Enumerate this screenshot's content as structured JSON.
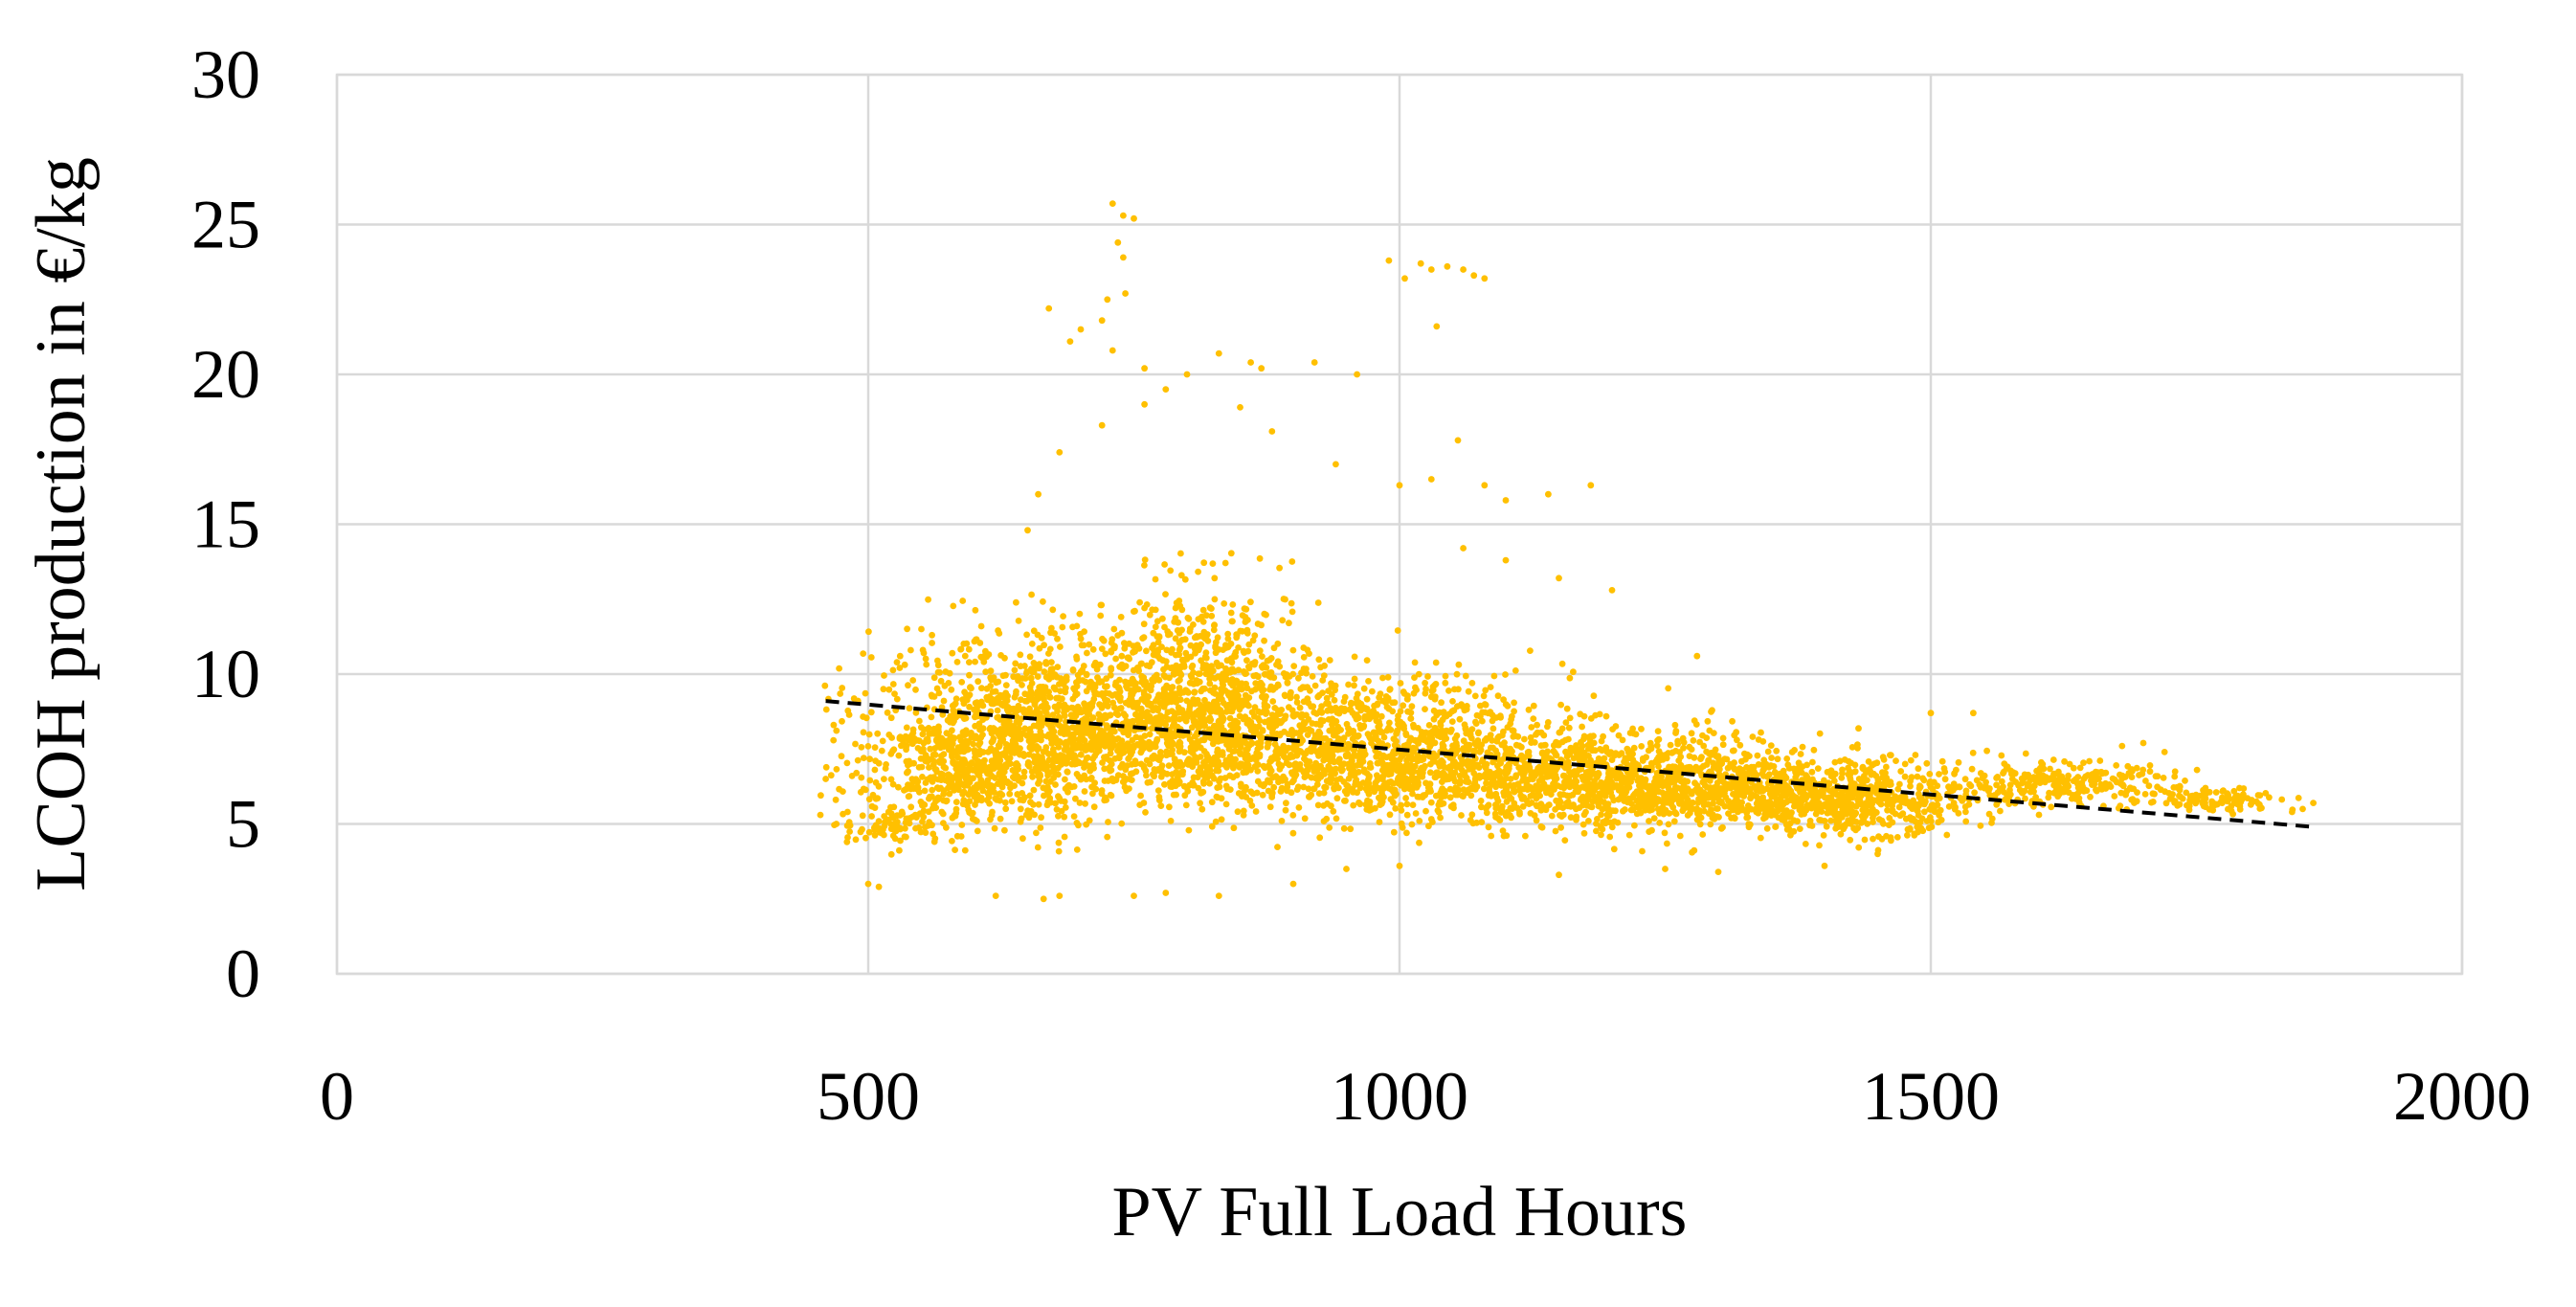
{
  "chart_data": {
    "type": "scatter",
    "title": "",
    "xlabel": "PV Full Load Hours",
    "ylabel": "LCOH production in €/kg",
    "xlim": [
      0,
      2000
    ],
    "ylim": [
      0,
      30
    ],
    "x_ticks": [
      0,
      500,
      1000,
      1500,
      2000
    ],
    "y_ticks": [
      0,
      5,
      10,
      15,
      20,
      25,
      30
    ],
    "grid": true,
    "legend": "none",
    "point_color": "#ffc000",
    "trendline": {
      "type": "linear",
      "style": "dashed",
      "color": "#000000",
      "points": [
        [
          460,
          9.1
        ],
        [
          1860,
          4.9
        ]
      ]
    },
    "series": [
      {
        "name": "LCOH production",
        "clusters": [
          {
            "x_center": 690,
            "y_center": 8.2,
            "x_spread": 150,
            "y_spread": 2.0,
            "count": 1400
          },
          {
            "x_center": 820,
            "y_center": 9.2,
            "x_spread": 90,
            "y_spread": 2.5,
            "count": 700
          },
          {
            "x_center": 600,
            "y_center": 6.6,
            "x_spread": 90,
            "y_spread": 1.5,
            "count": 500
          },
          {
            "x_center": 980,
            "y_center": 7.3,
            "x_spread": 150,
            "y_spread": 1.7,
            "count": 1300
          },
          {
            "x_center": 1220,
            "y_center": 6.3,
            "x_spread": 150,
            "y_spread": 1.2,
            "count": 1200
          },
          {
            "x_center": 1420,
            "y_center": 5.8,
            "x_spread": 100,
            "y_spread": 0.9,
            "count": 650
          },
          {
            "x_center": 1620,
            "y_center": 6.3,
            "x_spread": 90,
            "y_spread": 0.5,
            "count": 260
          },
          {
            "x_center": 1770,
            "y_center": 5.8,
            "x_spread": 60,
            "y_spread": 0.3,
            "count": 110
          },
          {
            "x_center": 520,
            "y_center": 5.0,
            "x_spread": 40,
            "y_spread": 0.5,
            "count": 80
          }
        ],
        "outliers": [
          [
            730,
            25.7
          ],
          [
            740,
            25.3
          ],
          [
            750,
            25.2
          ],
          [
            735,
            24.4
          ],
          [
            740,
            23.9
          ],
          [
            742,
            22.7
          ],
          [
            725,
            22.5
          ],
          [
            670,
            22.2
          ],
          [
            700,
            21.5
          ],
          [
            690,
            21.1
          ],
          [
            720,
            21.8
          ],
          [
            730,
            20.8
          ],
          [
            760,
            20.2
          ],
          [
            800,
            20.0
          ],
          [
            830,
            20.7
          ],
          [
            860,
            20.4
          ],
          [
            870,
            20.2
          ],
          [
            920,
            20.4
          ],
          [
            960,
            20.0
          ],
          [
            990,
            23.8
          ],
          [
            1005,
            23.2
          ],
          [
            1020,
            23.7
          ],
          [
            1030,
            23.5
          ],
          [
            1045,
            23.6
          ],
          [
            1060,
            23.5
          ],
          [
            1070,
            23.3
          ],
          [
            1080,
            23.2
          ],
          [
            1035,
            21.6
          ],
          [
            1055,
            17.8
          ],
          [
            1180,
            16.3
          ],
          [
            1140,
            16.0
          ],
          [
            1100,
            15.8
          ],
          [
            1080,
            16.3
          ],
          [
            1030,
            16.5
          ],
          [
            1000,
            16.3
          ],
          [
            940,
            17.0
          ],
          [
            880,
            18.1
          ],
          [
            850,
            18.9
          ],
          [
            780,
            19.5
          ],
          [
            760,
            19.0
          ],
          [
            720,
            18.3
          ],
          [
            680,
            17.4
          ],
          [
            660,
            16.0
          ],
          [
            650,
            14.8
          ],
          [
            560,
            11.3
          ],
          [
            550,
            11.5
          ],
          [
            540,
            10.8
          ],
          [
            530,
            10.6
          ],
          [
            500,
            3.0
          ],
          [
            510,
            2.9
          ],
          [
            620,
            2.6
          ],
          [
            665,
            2.5
          ],
          [
            680,
            2.6
          ],
          [
            750,
            2.6
          ],
          [
            780,
            2.7
          ],
          [
            830,
            2.6
          ],
          [
            900,
            3.0
          ],
          [
            1150,
            3.3
          ],
          [
            1300,
            3.4
          ],
          [
            1860,
            5.7
          ],
          [
            1850,
            5.5
          ],
          [
            1840,
            5.4
          ],
          [
            1700,
            7.7
          ],
          [
            1720,
            7.4
          ],
          [
            1680,
            7.6
          ],
          [
            1540,
            8.7
          ],
          [
            1500,
            8.7
          ],
          [
            1280,
            10.6
          ],
          [
            1200,
            12.8
          ],
          [
            1150,
            13.2
          ],
          [
            1100,
            13.8
          ],
          [
            1060,
            14.2
          ],
          [
            460,
            6.5
          ],
          [
            470,
            5.0
          ],
          [
            480,
            4.4
          ],
          [
            455,
            5.3
          ],
          [
            1450,
            4.0
          ],
          [
            1400,
            3.6
          ],
          [
            1250,
            3.5
          ],
          [
            1000,
            3.6
          ],
          [
            950,
            3.5
          ]
        ]
      }
    ]
  }
}
